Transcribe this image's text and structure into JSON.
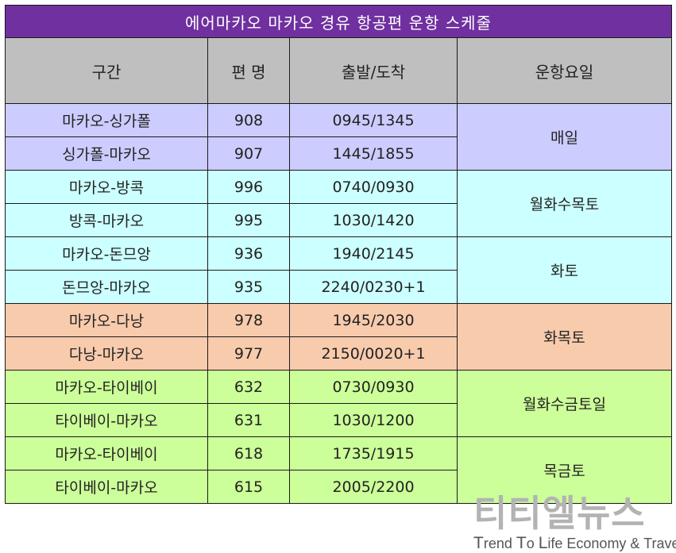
{
  "title": "에어마카오 마카오 경유 항공편 운항 스케줄",
  "headers": {
    "route": "구간",
    "flight": "편 명",
    "times": "출발/도착",
    "days": "운항요일"
  },
  "groups": [
    {
      "days": "매일",
      "color": "#ccccff",
      "rows": [
        {
          "route": "마카오-싱가폴",
          "flight": "908",
          "times": "0945/1345"
        },
        {
          "route": "싱가폴-마카오",
          "flight": "907",
          "times": "1445/1855"
        }
      ]
    },
    {
      "days": "월화수목토",
      "color": "#ccffff",
      "rows": [
        {
          "route": "마카오-방콕",
          "flight": "996",
          "times": "0740/0930"
        },
        {
          "route": "방콕-마카오",
          "flight": "995",
          "times": "1030/1420"
        }
      ]
    },
    {
      "days": "화토",
      "color": "#ccffff",
      "rows": [
        {
          "route": "마카오-돈므앙",
          "flight": "936",
          "times": "1940/2145"
        },
        {
          "route": "돈므앙-마카오",
          "flight": "935",
          "times": "2240/0230+1"
        }
      ]
    },
    {
      "days": "화목토",
      "color": "#f8cbad",
      "rows": [
        {
          "route": "마카오-다낭",
          "flight": "978",
          "times": "1945/2030"
        },
        {
          "route": "다낭-마카오",
          "flight": "977",
          "times": "2150/0020+1"
        }
      ]
    },
    {
      "days": "월화수금토일",
      "color": "#ccff99",
      "rows": [
        {
          "route": "마카오-타이베이",
          "flight": "632",
          "times": "0730/0930"
        },
        {
          "route": "타이베이-마카오",
          "flight": "631",
          "times": "1030/1200"
        }
      ]
    },
    {
      "days": "목금토",
      "color": "#ccff99",
      "rows": [
        {
          "route": "마카오-타이베이",
          "flight": "618",
          "times": "1735/1915"
        },
        {
          "route": "타이베이-마카오",
          "flight": "615",
          "times": "2005/2200"
        }
      ]
    }
  ],
  "watermark": {
    "name": "티티엘뉴스",
    "tagline_parts": [
      "T",
      "rend ",
      "T",
      "o ",
      "L",
      "ife Economy & Travel"
    ]
  }
}
